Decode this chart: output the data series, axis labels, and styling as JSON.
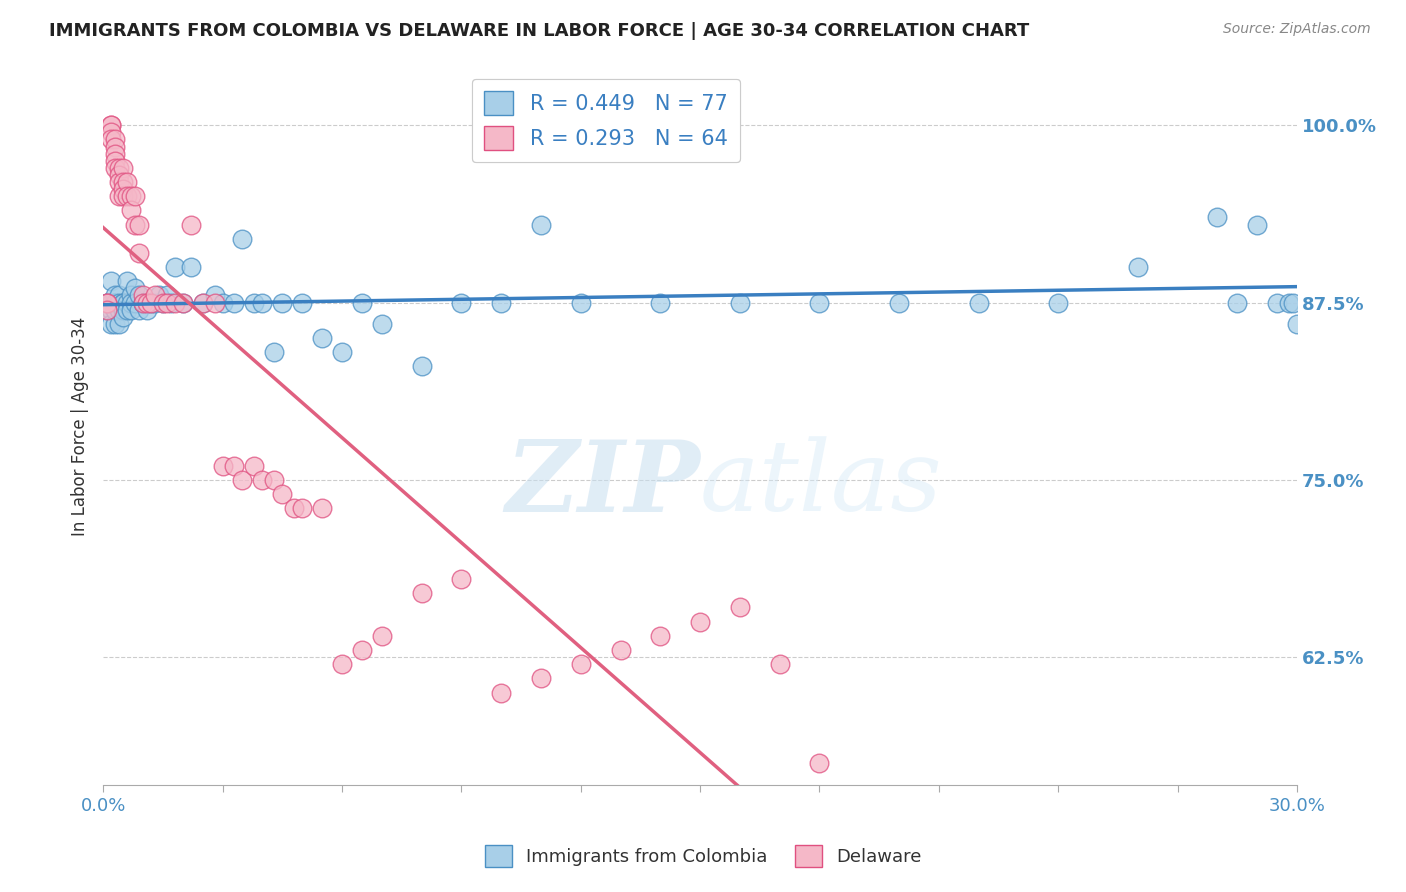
{
  "title": "IMMIGRANTS FROM COLOMBIA VS DELAWARE IN LABOR FORCE | AGE 30-34 CORRELATION CHART",
  "source": "Source: ZipAtlas.com",
  "ylabel": "In Labor Force | Age 30-34",
  "yticks": [
    0.625,
    0.75,
    0.875,
    1.0
  ],
  "ytick_labels": [
    "62.5%",
    "75.0%",
    "87.5%",
    "100.0%"
  ],
  "xmin": 0.0,
  "xmax": 0.3,
  "ymin": 0.535,
  "ymax": 1.04,
  "legend_r_col": "R = 0.449",
  "legend_n_col": "N = 77",
  "legend_r_del": "R = 0.293",
  "legend_n_del": "N = 64",
  "colombia_fill": "#a8cfe8",
  "colombia_edge": "#4a90c4",
  "delaware_fill": "#f5b8c8",
  "delaware_edge": "#e05080",
  "colombia_line": "#3a7fc1",
  "delaware_line": "#e06080",
  "watermark_zip": "ZIP",
  "watermark_atlas": "atlas",
  "legend_label_col": "Immigrants from Colombia",
  "legend_label_del": "Delaware",
  "colombia_x": [
    0.001,
    0.001,
    0.001,
    0.002,
    0.002,
    0.002,
    0.002,
    0.003,
    0.003,
    0.003,
    0.003,
    0.003,
    0.003,
    0.004,
    0.004,
    0.004,
    0.004,
    0.005,
    0.005,
    0.005,
    0.005,
    0.006,
    0.006,
    0.006,
    0.007,
    0.007,
    0.007,
    0.008,
    0.008,
    0.009,
    0.009,
    0.01,
    0.01,
    0.011,
    0.011,
    0.012,
    0.013,
    0.014,
    0.015,
    0.016,
    0.017,
    0.018,
    0.02,
    0.022,
    0.025,
    0.028,
    0.03,
    0.033,
    0.035,
    0.038,
    0.04,
    0.043,
    0.045,
    0.05,
    0.055,
    0.06,
    0.065,
    0.07,
    0.08,
    0.09,
    0.1,
    0.11,
    0.12,
    0.14,
    0.16,
    0.18,
    0.2,
    0.22,
    0.24,
    0.26,
    0.28,
    0.285,
    0.29,
    0.295,
    0.298,
    0.299,
    0.3
  ],
  "colombia_y": [
    0.875,
    0.875,
    0.87,
    0.89,
    0.875,
    0.87,
    0.86,
    0.88,
    0.875,
    0.87,
    0.86,
    0.87,
    0.875,
    0.88,
    0.875,
    0.87,
    0.86,
    0.875,
    0.875,
    0.87,
    0.865,
    0.89,
    0.875,
    0.87,
    0.88,
    0.875,
    0.87,
    0.885,
    0.875,
    0.88,
    0.87,
    0.875,
    0.875,
    0.875,
    0.87,
    0.875,
    0.875,
    0.88,
    0.875,
    0.88,
    0.875,
    0.9,
    0.875,
    0.9,
    0.875,
    0.88,
    0.875,
    0.875,
    0.92,
    0.875,
    0.875,
    0.84,
    0.875,
    0.875,
    0.85,
    0.84,
    0.875,
    0.86,
    0.83,
    0.875,
    0.875,
    0.93,
    0.875,
    0.875,
    0.875,
    0.875,
    0.875,
    0.875,
    0.875,
    0.9,
    0.935,
    0.875,
    0.93,
    0.875,
    0.875,
    0.875,
    0.86
  ],
  "delaware_x": [
    0.001,
    0.001,
    0.001,
    0.002,
    0.002,
    0.002,
    0.002,
    0.003,
    0.003,
    0.003,
    0.003,
    0.003,
    0.004,
    0.004,
    0.004,
    0.004,
    0.005,
    0.005,
    0.005,
    0.005,
    0.006,
    0.006,
    0.007,
    0.007,
    0.008,
    0.008,
    0.009,
    0.009,
    0.01,
    0.01,
    0.011,
    0.012,
    0.013,
    0.015,
    0.016,
    0.018,
    0.02,
    0.022,
    0.025,
    0.028,
    0.03,
    0.033,
    0.035,
    0.038,
    0.04,
    0.043,
    0.045,
    0.048,
    0.05,
    0.055,
    0.06,
    0.065,
    0.07,
    0.08,
    0.09,
    0.1,
    0.11,
    0.12,
    0.13,
    0.14,
    0.15,
    0.16,
    0.17,
    0.18
  ],
  "delaware_y": [
    0.875,
    0.875,
    0.87,
    1.0,
    1.0,
    0.995,
    0.99,
    0.99,
    0.985,
    0.98,
    0.975,
    0.97,
    0.97,
    0.965,
    0.96,
    0.95,
    0.97,
    0.96,
    0.955,
    0.95,
    0.96,
    0.95,
    0.95,
    0.94,
    0.95,
    0.93,
    0.93,
    0.91,
    0.88,
    0.875,
    0.875,
    0.875,
    0.88,
    0.875,
    0.875,
    0.875,
    0.875,
    0.93,
    0.875,
    0.875,
    0.76,
    0.76,
    0.75,
    0.76,
    0.75,
    0.75,
    0.74,
    0.73,
    0.73,
    0.73,
    0.62,
    0.63,
    0.64,
    0.67,
    0.68,
    0.6,
    0.61,
    0.62,
    0.63,
    0.64,
    0.65,
    0.66,
    0.62,
    0.55
  ]
}
